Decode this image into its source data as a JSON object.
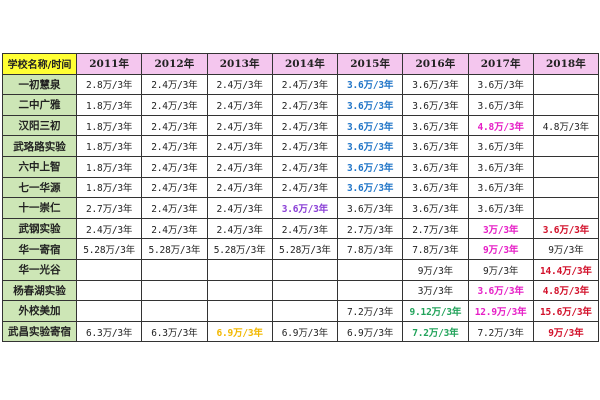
{
  "table": {
    "corner": "学校名称/时间",
    "years": [
      "2011年",
      "2012年",
      "2013年",
      "2014年",
      "2015年",
      "2016年",
      "2017年",
      "2018年"
    ],
    "rows": [
      {
        "school": "一初慧泉",
        "cells": [
          {
            "text": "2.8万/3年"
          },
          {
            "text": "2.4万/3年"
          },
          {
            "text": "2.4万/3年"
          },
          {
            "text": "2.4万/3年"
          },
          {
            "text": "3.6万/3年",
            "color": "blue"
          },
          {
            "text": "3.6万/3年"
          },
          {
            "text": "3.6万/3年"
          },
          {
            "text": ""
          }
        ]
      },
      {
        "school": "二中广雅",
        "cells": [
          {
            "text": "1.8万/3年"
          },
          {
            "text": "2.4万/3年"
          },
          {
            "text": "2.4万/3年"
          },
          {
            "text": "2.4万/3年"
          },
          {
            "text": "3.6万/3年",
            "color": "blue"
          },
          {
            "text": "3.6万/3年"
          },
          {
            "text": "3.6万/3年"
          },
          {
            "text": ""
          }
        ]
      },
      {
        "school": "汉阳三初",
        "cells": [
          {
            "text": "1.8万/3年"
          },
          {
            "text": "2.4万/3年"
          },
          {
            "text": "2.4万/3年"
          },
          {
            "text": "2.4万/3年"
          },
          {
            "text": "3.6万/3年",
            "color": "blue"
          },
          {
            "text": "3.6万/3年"
          },
          {
            "text": "4.8万/3年",
            "color": "magenta"
          },
          {
            "text": "4.8万/3年"
          }
        ]
      },
      {
        "school": "武珞路实验",
        "cells": [
          {
            "text": "1.8万/3年"
          },
          {
            "text": "2.4万/3年"
          },
          {
            "text": "2.4万/3年"
          },
          {
            "text": "2.4万/3年"
          },
          {
            "text": "3.6万/3年",
            "color": "blue"
          },
          {
            "text": "3.6万/3年"
          },
          {
            "text": "3.6万/3年"
          },
          {
            "text": ""
          }
        ]
      },
      {
        "school": "六中上智",
        "cells": [
          {
            "text": "1.8万/3年"
          },
          {
            "text": "2.4万/3年"
          },
          {
            "text": "2.4万/3年"
          },
          {
            "text": "2.4万/3年"
          },
          {
            "text": "3.6万/3年",
            "color": "blue"
          },
          {
            "text": "3.6万/3年"
          },
          {
            "text": "3.6万/3年"
          },
          {
            "text": ""
          }
        ]
      },
      {
        "school": "七一华源",
        "cells": [
          {
            "text": "1.8万/3年"
          },
          {
            "text": "2.4万/3年"
          },
          {
            "text": "2.4万/3年"
          },
          {
            "text": "2.4万/3年"
          },
          {
            "text": "3.6万/3年",
            "color": "blue"
          },
          {
            "text": "3.6万/3年"
          },
          {
            "text": "3.6万/3年"
          },
          {
            "text": ""
          }
        ]
      },
      {
        "school": "十一崇仁",
        "cells": [
          {
            "text": "2.7万/3年"
          },
          {
            "text": "2.4万/3年"
          },
          {
            "text": "2.4万/3年"
          },
          {
            "text": "3.6万/3年",
            "color": "purple"
          },
          {
            "text": "3.6万/3年"
          },
          {
            "text": "3.6万/3年"
          },
          {
            "text": "3.6万/3年"
          },
          {
            "text": ""
          }
        ]
      },
      {
        "school": "武钢实验",
        "cells": [
          {
            "text": "2.4万/3年"
          },
          {
            "text": "2.4万/3年"
          },
          {
            "text": "2.4万/3年"
          },
          {
            "text": "2.4万/3年"
          },
          {
            "text": "2.7万/3年"
          },
          {
            "text": "2.7万/3年"
          },
          {
            "text": "3万/3年",
            "color": "magenta"
          },
          {
            "text": "3.6万/3年",
            "color": "red"
          }
        ]
      },
      {
        "school": "华一寄宿",
        "cells": [
          {
            "text": "5.28万/3年"
          },
          {
            "text": "5.28万/3年"
          },
          {
            "text": "5.28万/3年"
          },
          {
            "text": "5.28万/3年"
          },
          {
            "text": "7.8万/3年"
          },
          {
            "text": "7.8万/3年"
          },
          {
            "text": "9万/3年",
            "color": "magenta"
          },
          {
            "text": "9万/3年"
          }
        ]
      },
      {
        "school": "华一光谷",
        "cells": [
          {
            "text": ""
          },
          {
            "text": ""
          },
          {
            "text": ""
          },
          {
            "text": ""
          },
          {
            "text": ""
          },
          {
            "text": "9万/3年"
          },
          {
            "text": "9万/3年"
          },
          {
            "text": "14.4万/3年",
            "color": "red"
          }
        ]
      },
      {
        "school": "杨春湖实验",
        "cells": [
          {
            "text": ""
          },
          {
            "text": ""
          },
          {
            "text": ""
          },
          {
            "text": ""
          },
          {
            "text": ""
          },
          {
            "text": "3万/3年"
          },
          {
            "text": "3.6万/3年",
            "color": "magenta"
          },
          {
            "text": "4.8万/3年",
            "color": "red"
          }
        ]
      },
      {
        "school": "外校美加",
        "cells": [
          {
            "text": ""
          },
          {
            "text": ""
          },
          {
            "text": ""
          },
          {
            "text": ""
          },
          {
            "text": "7.2万/3年"
          },
          {
            "text": "9.12万/3年",
            "color": "green"
          },
          {
            "text": "12.9万/3年",
            "color": "magenta"
          },
          {
            "text": "15.6万/3年",
            "color": "red"
          }
        ]
      },
      {
        "school": "武昌实验寄宿",
        "cells": [
          {
            "text": "6.3万/3年"
          },
          {
            "text": "6.3万/3年"
          },
          {
            "text": "6.9万/3年",
            "color": "gold"
          },
          {
            "text": "6.9万/3年"
          },
          {
            "text": "6.9万/3年"
          },
          {
            "text": "7.2万/3年",
            "color": "green"
          },
          {
            "text": "7.2万/3年"
          },
          {
            "text": "9万/3年",
            "color": "red"
          }
        ]
      }
    ]
  }
}
